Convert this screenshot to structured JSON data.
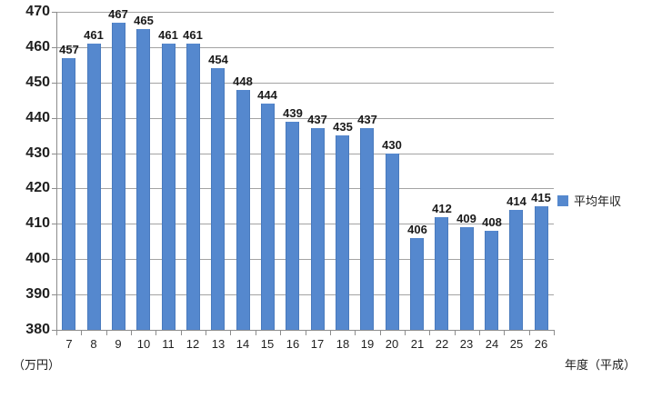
{
  "chart_data": {
    "type": "bar",
    "title": "",
    "categories": [
      "7",
      "8",
      "9",
      "10",
      "11",
      "12",
      "13",
      "14",
      "15",
      "16",
      "17",
      "18",
      "19",
      "20",
      "21",
      "22",
      "23",
      "24",
      "25",
      "26"
    ],
    "values": [
      457,
      461,
      467,
      465,
      461,
      461,
      454,
      448,
      444,
      439,
      437,
      435,
      437,
      430,
      406,
      412,
      409,
      408,
      414,
      415
    ],
    "series": [
      {
        "name": "平均年収",
        "values": [
          457,
          461,
          467,
          465,
          461,
          461,
          454,
          448,
          444,
          439,
          437,
          435,
          437,
          430,
          406,
          412,
          409,
          408,
          414,
          415
        ]
      }
    ],
    "xlabel": "年度（平成）",
    "ylabel": "（万円）",
    "ylim": [
      380,
      470
    ],
    "ytick_step": 10,
    "yticks": [
      380,
      390,
      400,
      410,
      420,
      430,
      440,
      450,
      460,
      470
    ],
    "grid": true,
    "data_labels": true,
    "legend_position": "right"
  },
  "labels": {
    "legend": "平均年収",
    "y_unit": "（万円）",
    "x_unit": "年度（平成）"
  },
  "colors": {
    "bar": "#5588ce",
    "grid": "#a3a3a3",
    "axis": "#8c8c8c",
    "text": "#1a1a1a"
  }
}
